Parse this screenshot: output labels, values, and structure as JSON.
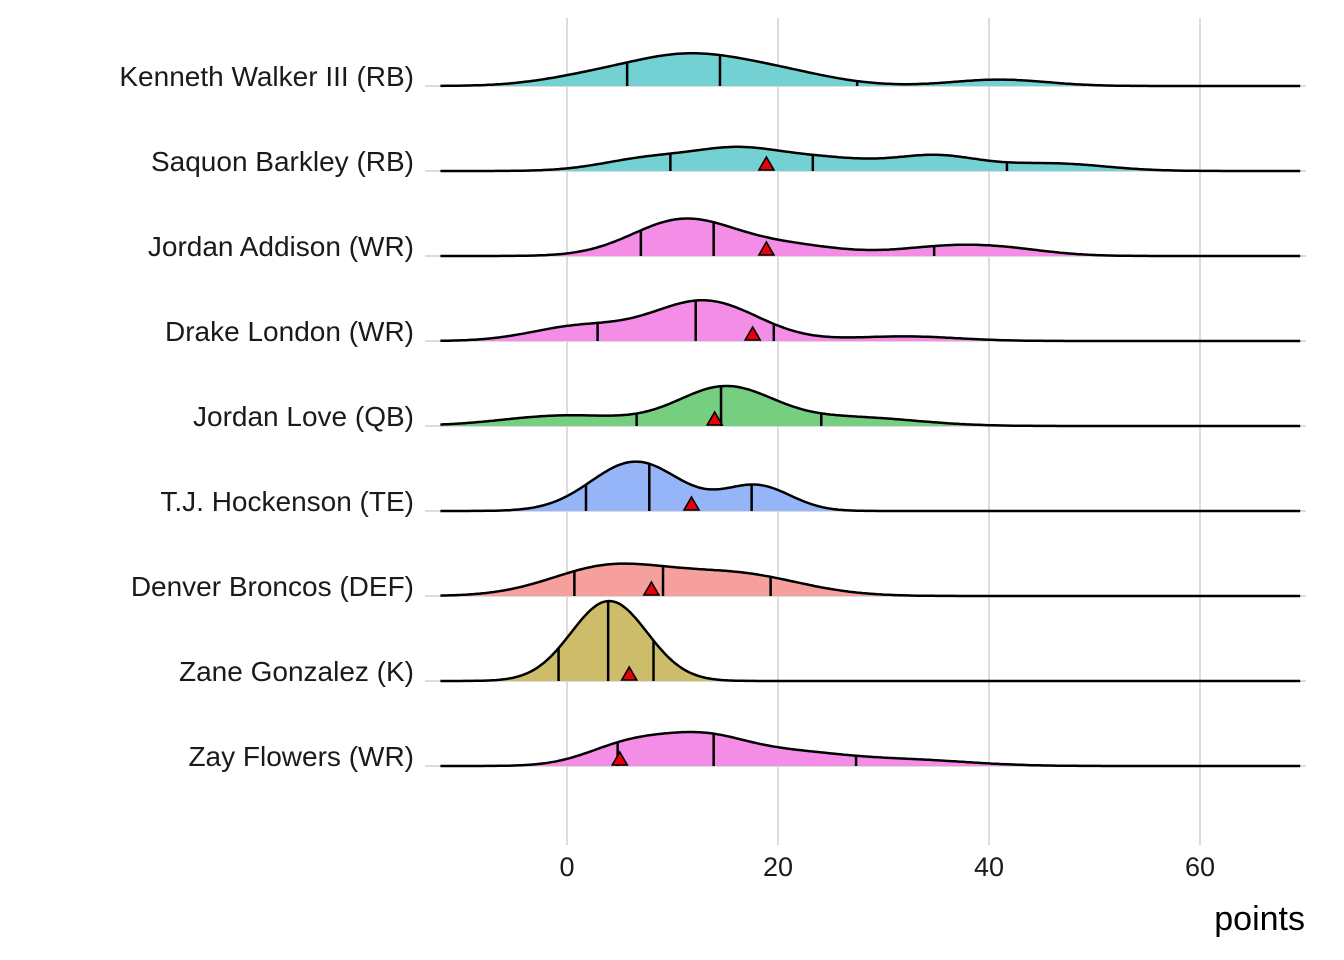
{
  "chart_data": {
    "type": "ridgeline",
    "title": "",
    "xlabel": "points",
    "ylabel": "",
    "xlim": [
      -12,
      69.6
    ],
    "x_ticks": [
      0,
      20,
      40,
      60
    ],
    "x_tick_labels": [
      "0",
      "20",
      "40",
      "60"
    ],
    "grid": true,
    "legend": "none",
    "marker_description": "red triangle = actual points scored",
    "quantile_description": "vertical lines at 10th, 50th, 90th percentiles",
    "series": [
      {
        "name": "Kenneth Walker III (RB)",
        "color": "#74D1D3",
        "quantiles": [
          5.7,
          14.5,
          27.5
        ],
        "actual": null,
        "density_components": [
          {
            "mean": 3,
            "sd": 5,
            "weight": 0.18
          },
          {
            "mean": 11,
            "sd": 5,
            "weight": 0.42
          },
          {
            "mean": 19,
            "sd": 5.5,
            "weight": 0.3
          },
          {
            "mean": 41,
            "sd": 4.5,
            "weight": 0.1
          }
        ]
      },
      {
        "name": "Saquon Barkley (RB)",
        "color": "#74D1D3",
        "quantiles": [
          9.8,
          23.3,
          41.7
        ],
        "actual": 18.9,
        "density_components": [
          {
            "mean": 8,
            "sd": 4.5,
            "weight": 0.2
          },
          {
            "mean": 16,
            "sd": 4,
            "weight": 0.25
          },
          {
            "mean": 24,
            "sd": 5,
            "weight": 0.22
          },
          {
            "mean": 35,
            "sd": 4,
            "weight": 0.2
          },
          {
            "mean": 46,
            "sd": 5,
            "weight": 0.13
          }
        ]
      },
      {
        "name": "Jordan Addison (WR)",
        "color": "#F48DE6",
        "quantiles": [
          7.0,
          13.9,
          34.8
        ],
        "actual": 18.9,
        "density_components": [
          {
            "mean": 11,
            "sd": 4.8,
            "weight": 0.6
          },
          {
            "mean": 21,
            "sd": 5,
            "weight": 0.18
          },
          {
            "mean": 35,
            "sd": 4.5,
            "weight": 0.11
          },
          {
            "mean": 41,
            "sd": 4.5,
            "weight": 0.11
          }
        ]
      },
      {
        "name": "Drake London (WR)",
        "color": "#F48DE6",
        "quantiles": [
          2.9,
          12.2,
          19.6
        ],
        "actual": 17.6,
        "density_components": [
          {
            "mean": 1,
            "sd": 4.5,
            "weight": 0.22
          },
          {
            "mean": 13,
            "sd": 5,
            "weight": 0.7
          },
          {
            "mean": 32,
            "sd": 5,
            "weight": 0.08
          }
        ]
      },
      {
        "name": "Jordan Love (QB)",
        "color": "#76CE80",
        "quantiles": [
          6.6,
          14.6,
          24.1
        ],
        "actual": 14.0,
        "density_components": [
          {
            "mean": 0,
            "sd": 6,
            "weight": 0.22
          },
          {
            "mean": 15,
            "sd": 4.5,
            "weight": 0.6
          },
          {
            "mean": 27,
            "sd": 6,
            "weight": 0.18
          }
        ]
      },
      {
        "name": "T.J. Hockenson (TE)",
        "color": "#95B5F8",
        "quantiles": [
          1.8,
          7.8,
          17.5
        ],
        "actual": 11.8,
        "density_components": [
          {
            "mean": 6.5,
            "sd": 4.2,
            "weight": 0.72
          },
          {
            "mean": 18,
            "sd": 3.2,
            "weight": 0.28
          }
        ]
      },
      {
        "name": "Denver Broncos (DEF)",
        "color": "#F5A09C",
        "quantiles": [
          0.7,
          9.1,
          19.3
        ],
        "actual": 8.0,
        "density_components": [
          {
            "mean": 4,
            "sd": 5.5,
            "weight": 0.55
          },
          {
            "mean": 16,
            "sd": 6,
            "weight": 0.45
          }
        ]
      },
      {
        "name": "Zane Gonzalez (K)",
        "color": "#CDBD6A",
        "quantiles": [
          -0.8,
          3.9,
          8.2
        ],
        "actual": 5.9,
        "density_components": [
          {
            "mean": 4,
            "sd": 3.6,
            "weight": 1.0
          }
        ]
      },
      {
        "name": "Zay Flowers (WR)",
        "color": "#F48DE6",
        "quantiles": [
          4.8,
          13.9,
          27.4
        ],
        "actual": 5.0,
        "density_components": [
          {
            "mean": 6,
            "sd": 4,
            "weight": 0.3
          },
          {
            "mean": 13,
            "sd": 4,
            "weight": 0.35
          },
          {
            "mean": 21,
            "sd": 5,
            "weight": 0.22
          },
          {
            "mean": 32,
            "sd": 6,
            "weight": 0.13
          }
        ]
      }
    ]
  }
}
